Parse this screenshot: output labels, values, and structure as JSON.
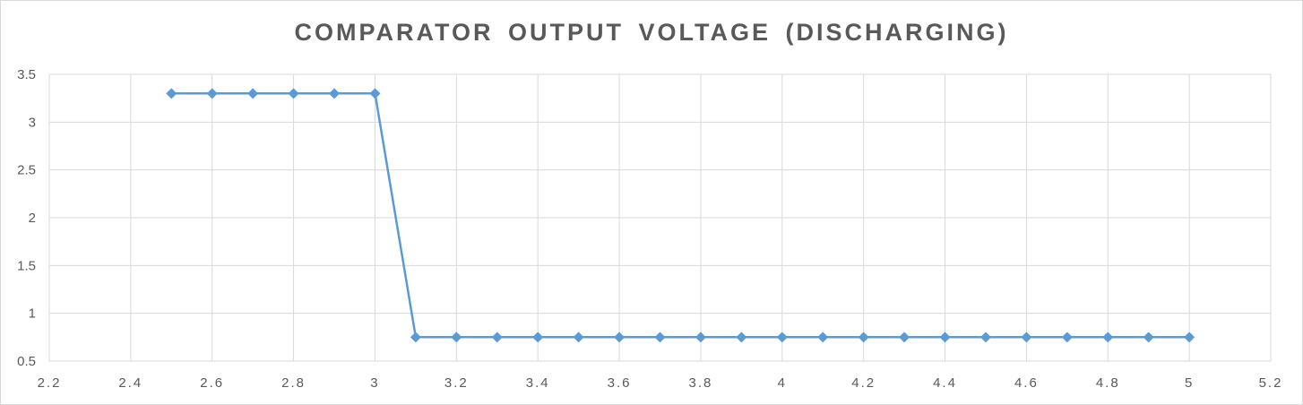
{
  "chart_data": {
    "type": "scatter",
    "title": "COMPARATOR OUTPUT VOLTAGE (DISCHARGING)",
    "xlim": [
      2.2,
      5.2
    ],
    "ylim": [
      0.5,
      3.5
    ],
    "x_ticks": [
      "2.2",
      "2.4",
      "2.6",
      "2.8",
      "3",
      "3.2",
      "3.4",
      "3.6",
      "3.8",
      "4",
      "4.2",
      "4.4",
      "4.6",
      "4.8",
      "5",
      "5.2"
    ],
    "y_ticks": [
      "0.5",
      "1",
      "1.5",
      "2",
      "2.5",
      "3",
      "3.5"
    ],
    "grid": true,
    "series": [
      {
        "color": "#5b9bd5",
        "marker": "diamond",
        "x": [
          2.5,
          2.6,
          2.7,
          2.8,
          2.9,
          3.0,
          3.1,
          3.2,
          3.3,
          3.4,
          3.5,
          3.6,
          3.7,
          3.8,
          3.9,
          4.0,
          4.1,
          4.2,
          4.3,
          4.4,
          4.5,
          4.6,
          4.7,
          4.8,
          4.9,
          5.0
        ],
        "y": [
          3.3,
          3.3,
          3.3,
          3.3,
          3.3,
          3.3,
          0.75,
          0.75,
          0.75,
          0.75,
          0.75,
          0.75,
          0.75,
          0.75,
          0.75,
          0.75,
          0.75,
          0.75,
          0.75,
          0.75,
          0.75,
          0.75,
          0.75,
          0.75,
          0.75,
          0.75
        ]
      }
    ]
  }
}
